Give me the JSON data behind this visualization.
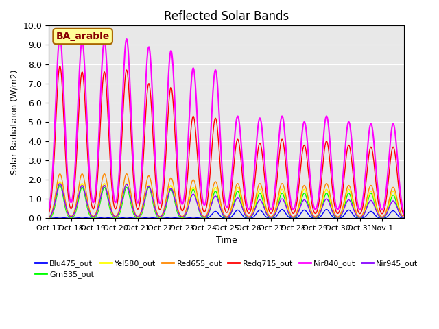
{
  "title": "Reflected Solar Bands",
  "ylabel": "Solar Radiataion (W/m2)",
  "xlabel": "Time",
  "annotation": "BA_arable",
  "ylim": [
    0,
    10.0
  ],
  "yticks": [
    0.0,
    1.0,
    2.0,
    3.0,
    4.0,
    5.0,
    6.0,
    7.0,
    8.0,
    9.0,
    10.0
  ],
  "colors": {
    "Blu475_out": "#0000ff",
    "Grn535_out": "#00ff00",
    "Yel580_out": "#ffff00",
    "Red655_out": "#ff8800",
    "Redg715_out": "#ff0000",
    "Nir840_out": "#ff00ff",
    "Nir945_out": "#8800ff"
  },
  "xtick_labels": [
    "Oct 17",
    "Oct 18",
    "Oct 19",
    "Oct 20",
    "Oct 21",
    "Oct 22",
    "Oct 23",
    "Oct 24",
    "Oct 25",
    "Oct 26",
    "Oct 27",
    "Oct 28",
    "Oct 29",
    "Oct 30",
    "Oct 31",
    "Nov 1"
  ],
  "nir840_peaks": [
    9.4,
    9.2,
    9.2,
    9.3,
    8.9,
    8.7,
    7.8,
    7.7,
    5.3,
    5.2,
    5.3,
    5.0,
    5.3,
    5.0,
    4.9,
    4.9
  ],
  "redg715_peaks": [
    7.9,
    7.6,
    7.6,
    7.7,
    7.0,
    6.8,
    5.3,
    5.2,
    4.1,
    3.9,
    4.1,
    3.8,
    4.0,
    3.8,
    3.7,
    3.7
  ],
  "red655_peaks": [
    2.3,
    2.3,
    2.3,
    2.3,
    2.2,
    2.1,
    2.0,
    1.9,
    1.8,
    1.8,
    1.8,
    1.7,
    1.8,
    1.7,
    1.7,
    1.6
  ],
  "yel580_peaks": [
    1.9,
    1.8,
    1.8,
    1.8,
    1.7,
    1.7,
    1.6,
    1.6,
    1.6,
    1.5,
    1.5,
    1.5,
    1.5,
    1.5,
    1.4,
    1.4
  ],
  "grn535_peaks": [
    1.7,
    1.6,
    1.6,
    1.6,
    1.6,
    1.5,
    1.5,
    1.4,
    1.4,
    1.3,
    1.3,
    1.3,
    1.3,
    1.3,
    1.3,
    1.2
  ],
  "blu475_peaks": [
    0.05,
    0.05,
    0.05,
    0.05,
    0.05,
    0.05,
    0.05,
    0.35,
    0.42,
    0.42,
    0.45,
    0.42,
    0.45,
    0.42,
    0.35,
    0.38
  ],
  "nir945_peaks": [
    1.8,
    1.7,
    1.7,
    1.75,
    1.65,
    1.55,
    1.25,
    1.15,
    1.05,
    0.95,
    1.0,
    0.95,
    1.0,
    0.95,
    0.92,
    0.9
  ],
  "bg_color": "#e8e8e8",
  "annotation_bg": "#ffff99",
  "annotation_border": "#aa6600"
}
